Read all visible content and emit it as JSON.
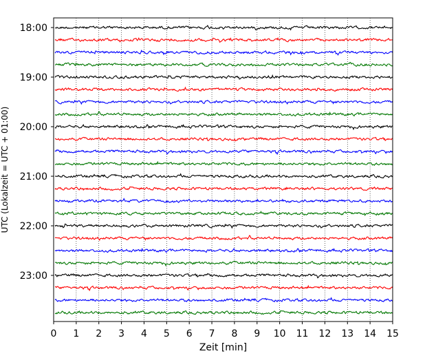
{
  "chart_data": {
    "type": "line",
    "title": "",
    "xlabel": "Zeit  [min]",
    "ylabel": "UTC (Lokalzeit = UTC + 01:00)",
    "xlim": [
      0,
      15
    ],
    "x_ticks": [
      "0",
      "1",
      "2",
      "3",
      "4",
      "5",
      "6",
      "7",
      "8",
      "9",
      "10",
      "11",
      "12",
      "13",
      "14",
      "15"
    ],
    "y_ticks": [
      "18:00",
      "19:00",
      "20:00",
      "21:00",
      "22:00",
      "23:00"
    ],
    "grid": "vertical dotted",
    "legend": "none",
    "series_colors": [
      "#000000",
      "#ff0000",
      "#0000ff",
      "#007700"
    ],
    "trace_count": 24,
    "trace_interval_min": 15,
    "start_time": "18:00"
  }
}
